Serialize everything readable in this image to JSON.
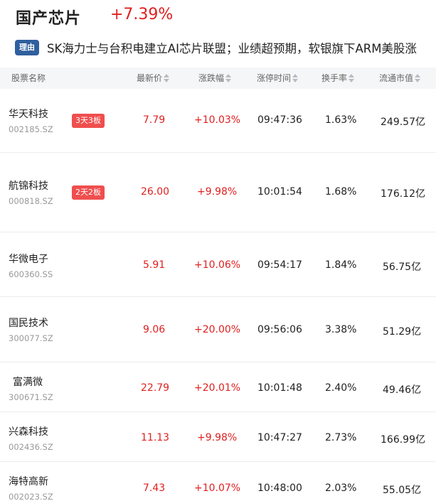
{
  "header": {
    "title": "国产芯片",
    "change": "+7.39%"
  },
  "reason": {
    "tag": "理由",
    "text": "SK海力士与台积电建立AI芯片联盟；业绩超预期，软银旗下ARM美股涨"
  },
  "table": {
    "columns": [
      "股票名称",
      "最新价",
      "涨跌幅",
      "涨停时间",
      "换手率",
      "流通市值"
    ],
    "rows": [
      {
        "name": "华天科技",
        "code": "002185.SZ",
        "badge": "3天3板",
        "price": "7.79",
        "change": "+10.03%",
        "limit_time": "09:47:36",
        "turnover": "1.63%",
        "market_cap": "249.57亿"
      },
      {
        "name": "航锦科技",
        "code": "000818.SZ",
        "badge": "2天2板",
        "price": "26.00",
        "change": "+9.98%",
        "limit_time": "10:01:54",
        "turnover": "1.68%",
        "market_cap": "176.12亿"
      },
      {
        "name": "华微电子",
        "code": "600360.SS",
        "badge": "",
        "price": "5.91",
        "change": "+10.06%",
        "limit_time": "09:54:17",
        "turnover": "1.84%",
        "market_cap": "56.75亿"
      },
      {
        "name": "国民技术",
        "code": "300077.SZ",
        "badge": "",
        "price": "9.06",
        "change": "+20.00%",
        "limit_time": "09:56:06",
        "turnover": "3.38%",
        "market_cap": "51.29亿"
      },
      {
        "name": "富满微",
        "code": "300671.SZ",
        "badge": "",
        "price": "22.79",
        "change": "+20.01%",
        "limit_time": "10:01:48",
        "turnover": "2.40%",
        "market_cap": "49.46亿"
      },
      {
        "name": "兴森科技",
        "code": "002436.SZ",
        "badge": "",
        "price": "11.13",
        "change": "+9.98%",
        "limit_time": "10:47:27",
        "turnover": "2.73%",
        "market_cap": "166.99亿"
      },
      {
        "name": "海特高新",
        "code": "002023.SZ",
        "badge": "",
        "price": "7.43",
        "change": "+10.07%",
        "limit_time": "10:48:00",
        "turnover": "2.03%",
        "market_cap": "55.05亿"
      }
    ]
  },
  "colors": {
    "up": "#e02020",
    "badge": "#f04e4e",
    "tag": "#2f5f9e"
  },
  "icons": {
    "sort": "sort-arrows-icon"
  }
}
